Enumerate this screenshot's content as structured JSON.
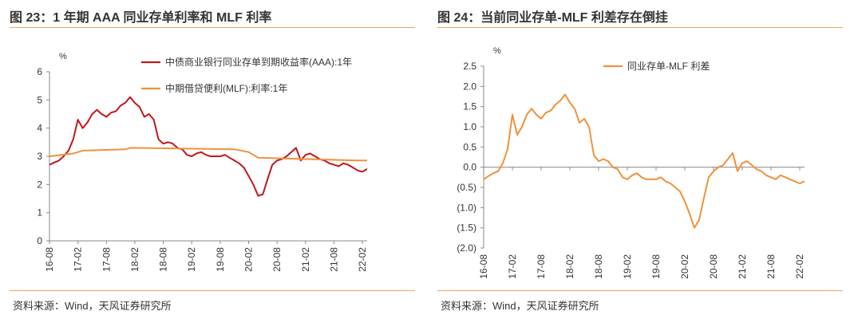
{
  "left_panel": {
    "title": "图 23：1 年期 AAA 同业存单利率和 MLF 利率",
    "source": "资料来源：Wind，天风证券研究所"
  },
  "right_panel": {
    "title": "图 24：当前同业存单-MLF 利差存在倒挂",
    "source": "资料来源：Wind，天风证券研究所"
  },
  "chart_data": [
    {
      "type": "line",
      "ylabel": "%",
      "ylim": [
        0,
        6
      ],
      "yticks": [
        0,
        1,
        2,
        3,
        4,
        5,
        6
      ],
      "ytick_labels": [
        "0",
        "1",
        "2",
        "3",
        "4",
        "5",
        "6"
      ],
      "xlim": [
        "2016-08",
        "2022-03"
      ],
      "xticks": [
        "16-08",
        "17-02",
        "17-08",
        "18-02",
        "18-08",
        "19-02",
        "19-08",
        "20-02",
        "20-08",
        "21-02",
        "21-08",
        "22-02"
      ],
      "legend_position": "top-right",
      "colors": {
        "ncd": "#C0161C",
        "mlf": "#F0913A"
      },
      "series": [
        {
          "name": "中债商业银行同业存单到期收益率(AAA):1年",
          "color": "#C0161C",
          "points": [
            [
              "2016-08",
              2.7
            ],
            [
              "2016-09",
              2.78
            ],
            [
              "2016-10",
              2.85
            ],
            [
              "2016-11",
              3.0
            ],
            [
              "2016-12",
              3.2
            ],
            [
              "2017-01",
              3.6
            ],
            [
              "2017-02",
              4.3
            ],
            [
              "2017-03",
              4.0
            ],
            [
              "2017-04",
              4.2
            ],
            [
              "2017-05",
              4.5
            ],
            [
              "2017-06",
              4.65
            ],
            [
              "2017-07",
              4.5
            ],
            [
              "2017-08",
              4.4
            ],
            [
              "2017-09",
              4.55
            ],
            [
              "2017-10",
              4.6
            ],
            [
              "2017-11",
              4.8
            ],
            [
              "2017-12",
              4.9
            ],
            [
              "2018-01",
              5.1
            ],
            [
              "2018-02",
              4.9
            ],
            [
              "2018-03",
              4.75
            ],
            [
              "2018-04",
              4.4
            ],
            [
              "2018-05",
              4.5
            ],
            [
              "2018-06",
              4.3
            ],
            [
              "2018-07",
              3.6
            ],
            [
              "2018-08",
              3.45
            ],
            [
              "2018-09",
              3.5
            ],
            [
              "2018-10",
              3.45
            ],
            [
              "2018-11",
              3.3
            ],
            [
              "2018-12",
              3.25
            ],
            [
              "2019-01",
              3.05
            ],
            [
              "2019-02",
              3.0
            ],
            [
              "2019-03",
              3.1
            ],
            [
              "2019-04",
              3.15
            ],
            [
              "2019-05",
              3.05
            ],
            [
              "2019-06",
              3.0
            ],
            [
              "2019-07",
              3.0
            ],
            [
              "2019-08",
              3.0
            ],
            [
              "2019-09",
              3.05
            ],
            [
              "2019-10",
              2.95
            ],
            [
              "2019-11",
              2.85
            ],
            [
              "2019-12",
              2.75
            ],
            [
              "2020-01",
              2.6
            ],
            [
              "2020-02",
              2.3
            ],
            [
              "2020-03",
              2.0
            ],
            [
              "2020-04",
              1.6
            ],
            [
              "2020-05",
              1.65
            ],
            [
              "2020-06",
              2.2
            ],
            [
              "2020-07",
              2.7
            ],
            [
              "2020-08",
              2.85
            ],
            [
              "2020-09",
              2.9
            ],
            [
              "2020-10",
              3.0
            ],
            [
              "2020-11",
              3.15
            ],
            [
              "2020-12",
              3.3
            ],
            [
              "2021-01",
              2.85
            ],
            [
              "2021-02",
              3.05
            ],
            [
              "2021-03",
              3.1
            ],
            [
              "2021-04",
              3.0
            ],
            [
              "2021-05",
              2.9
            ],
            [
              "2021-06",
              2.85
            ],
            [
              "2021-07",
              2.75
            ],
            [
              "2021-08",
              2.7
            ],
            [
              "2021-09",
              2.65
            ],
            [
              "2021-10",
              2.75
            ],
            [
              "2021-11",
              2.7
            ],
            [
              "2021-12",
              2.6
            ],
            [
              "2022-01",
              2.5
            ],
            [
              "2022-02",
              2.45
            ],
            [
              "2022-03",
              2.55
            ]
          ]
        },
        {
          "name": "中期借贷便利(MLF):利率:1年",
          "color": "#F0913A",
          "points": [
            [
              "2016-08",
              3.0
            ],
            [
              "2017-01",
              3.1
            ],
            [
              "2017-03",
              3.2
            ],
            [
              "2017-12",
              3.25
            ],
            [
              "2018-01",
              3.3
            ],
            [
              "2019-11",
              3.25
            ],
            [
              "2020-02",
              3.15
            ],
            [
              "2020-04",
              2.95
            ],
            [
              "2022-01",
              2.85
            ],
            [
              "2022-03",
              2.85
            ]
          ]
        }
      ]
    },
    {
      "type": "line",
      "ylabel": "%",
      "ylim": [
        -2.0,
        2.5
      ],
      "yticks": [
        2.5,
        2.0,
        1.5,
        1.0,
        0.5,
        0.0,
        -0.5,
        -1.0,
        -1.5,
        -2.0
      ],
      "ytick_labels": [
        "2.5",
        "2.0",
        "1.5",
        "1.0",
        "0.5",
        "0.0",
        "(0.5)",
        "(1.0)",
        "(1.5)",
        "(2.0)"
      ],
      "xlim": [
        "2016-08",
        "2022-03"
      ],
      "xticks": [
        "16-08",
        "17-02",
        "17-08",
        "18-02",
        "18-08",
        "19-02",
        "19-08",
        "20-02",
        "20-08",
        "21-02",
        "21-08",
        "22-02"
      ],
      "legend_position": "top-center",
      "colors": {
        "spread": "#F0913A"
      },
      "series": [
        {
          "name": "同业存单-MLF 利差",
          "color": "#F0913A",
          "points": [
            [
              "2016-08",
              -0.3
            ],
            [
              "2016-09",
              -0.22
            ],
            [
              "2016-10",
              -0.15
            ],
            [
              "2016-11",
              -0.1
            ],
            [
              "2016-12",
              0.1
            ],
            [
              "2017-01",
              0.45
            ],
            [
              "2017-02",
              1.3
            ],
            [
              "2017-03",
              0.8
            ],
            [
              "2017-04",
              1.0
            ],
            [
              "2017-05",
              1.3
            ],
            [
              "2017-06",
              1.45
            ],
            [
              "2017-07",
              1.3
            ],
            [
              "2017-08",
              1.2
            ],
            [
              "2017-09",
              1.35
            ],
            [
              "2017-10",
              1.4
            ],
            [
              "2017-11",
              1.55
            ],
            [
              "2017-12",
              1.65
            ],
            [
              "2018-01",
              1.8
            ],
            [
              "2018-02",
              1.6
            ],
            [
              "2018-03",
              1.45
            ],
            [
              "2018-04",
              1.1
            ],
            [
              "2018-05",
              1.2
            ],
            [
              "2018-06",
              1.0
            ],
            [
              "2018-07",
              0.3
            ],
            [
              "2018-08",
              0.15
            ],
            [
              "2018-09",
              0.2
            ],
            [
              "2018-10",
              0.15
            ],
            [
              "2018-11",
              0.0
            ],
            [
              "2018-12",
              -0.05
            ],
            [
              "2019-01",
              -0.25
            ],
            [
              "2019-02",
              -0.3
            ],
            [
              "2019-03",
              -0.2
            ],
            [
              "2019-04",
              -0.15
            ],
            [
              "2019-05",
              -0.25
            ],
            [
              "2019-06",
              -0.3
            ],
            [
              "2019-07",
              -0.3
            ],
            [
              "2019-08",
              -0.3
            ],
            [
              "2019-09",
              -0.25
            ],
            [
              "2019-10",
              -0.35
            ],
            [
              "2019-11",
              -0.4
            ],
            [
              "2019-12",
              -0.5
            ],
            [
              "2020-01",
              -0.6
            ],
            [
              "2020-02",
              -0.85
            ],
            [
              "2020-03",
              -1.15
            ],
            [
              "2020-04",
              -1.5
            ],
            [
              "2020-05",
              -1.3
            ],
            [
              "2020-06",
              -0.75
            ],
            [
              "2020-07",
              -0.25
            ],
            [
              "2020-08",
              -0.1
            ],
            [
              "2020-09",
              0.0
            ],
            [
              "2020-10",
              0.05
            ],
            [
              "2020-11",
              0.2
            ],
            [
              "2020-12",
              0.35
            ],
            [
              "2021-01",
              -0.1
            ],
            [
              "2021-02",
              0.1
            ],
            [
              "2021-03",
              0.15
            ],
            [
              "2021-04",
              0.05
            ],
            [
              "2021-05",
              -0.05
            ],
            [
              "2021-06",
              -0.1
            ],
            [
              "2021-07",
              -0.2
            ],
            [
              "2021-08",
              -0.25
            ],
            [
              "2021-09",
              -0.3
            ],
            [
              "2021-10",
              -0.2
            ],
            [
              "2021-11",
              -0.25
            ],
            [
              "2021-12",
              -0.3
            ],
            [
              "2022-01",
              -0.35
            ],
            [
              "2022-02",
              -0.4
            ],
            [
              "2022-03",
              -0.35
            ]
          ]
        }
      ]
    }
  ]
}
